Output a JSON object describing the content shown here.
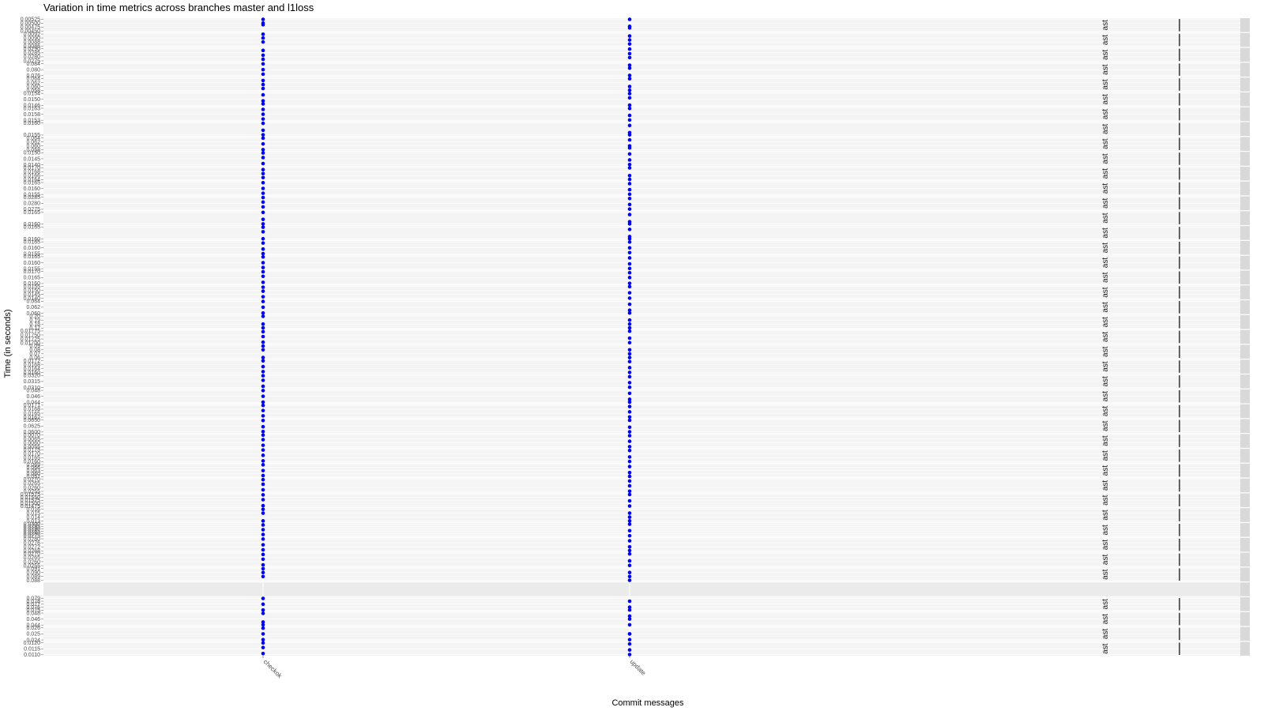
{
  "chart_data": {
    "type": "scatter",
    "title": "Variation in time metrics across branches master and l1loss",
    "xlabel": "Commit messages",
    "ylabel": "Time (in seconds)",
    "categories": [
      "checkok",
      "update"
    ],
    "point_color": "#0000ff",
    "facet_strip_text": "ast",
    "panels": [
      {
        "ticks": [
          "0.00525",
          "0.00500",
          "0.00475",
          "0.00450"
        ],
        "values": [
          [
            0.00525,
            0.005,
            0.0049
          ],
          [
            0.00525,
            0.0048,
            0.0047
          ]
        ]
      },
      {
        "ticks": [
          "0.0092",
          "0.0090",
          "0.0088",
          "0.0086"
        ],
        "values": [
          [
            0.0092,
            0.009,
            0.0088
          ],
          [
            0.0091,
            0.0089,
            0.0087
          ]
        ]
      },
      {
        "ticks": [
          "0.0290",
          "0.0285",
          "0.0280",
          "0.0275"
        ],
        "values": [
          [
            0.0288,
            0.0282,
            0.0277
          ],
          [
            0.029,
            0.0284,
            0.0279
          ]
        ]
      },
      {
        "ticks": [
          "0.084",
          "0.080",
          "0.076"
        ],
        "values": [
          [
            0.084,
            0.08,
            0.077
          ],
          [
            0.083,
            0.081,
            0.076
          ]
        ]
      },
      {
        "ticks": [
          "0.064",
          "0.062",
          "0.060",
          "0.058"
        ],
        "values": [
          [
            0.063,
            0.061,
            0.059
          ],
          [
            0.064,
            0.06,
            0.058
          ]
        ]
      },
      {
        "ticks": [
          "0.0154",
          "0.0150",
          "0.0146"
        ],
        "values": [
          [
            0.0153,
            0.0149,
            0.0147
          ],
          [
            0.0154,
            0.0151,
            0.0146
          ]
        ]
      },
      {
        "ticks": [
          "0.0163",
          "0.0158",
          "0.0153"
        ],
        "values": [
          [
            0.0162,
            0.0158,
            0.0154
          ],
          [
            0.0163,
            0.0157,
            0.0153
          ]
        ]
      },
      {
        "ticks": [
          "0.0160",
          "0.0155"
        ],
        "values": [
          [
            0.016,
            0.0157,
            0.0155
          ],
          [
            0.0159,
            0.0156,
            0.0155
          ]
        ]
      },
      {
        "ticks": [
          "0.064",
          "0.062",
          "0.060",
          "0.058"
        ],
        "values": [
          [
            0.064,
            0.061,
            0.058
          ],
          [
            0.063,
            0.06,
            0.059
          ]
        ]
      },
      {
        "ticks": [
          "0.0150",
          "0.0145",
          "0.0140"
        ],
        "values": [
          [
            0.015,
            0.0146,
            0.0141
          ],
          [
            0.0149,
            0.0144,
            0.014
          ]
        ]
      },
      {
        "ticks": [
          "0.0170",
          "0.0168",
          "0.0166",
          "0.0164"
        ],
        "values": [
          [
            0.0169,
            0.0167,
            0.0165
          ],
          [
            0.017,
            0.0166,
            0.0164
          ]
        ]
      },
      {
        "ticks": [
          "0.0165",
          "0.0160",
          "0.0155"
        ],
        "values": [
          [
            0.0165,
            0.016,
            0.0156
          ],
          [
            0.0164,
            0.0159,
            0.0155
          ]
        ]
      },
      {
        "ticks": [
          "0.0285",
          "0.0280",
          "0.0275"
        ],
        "values": [
          [
            0.0285,
            0.0281,
            0.0277
          ],
          [
            0.0284,
            0.0279,
            0.0275
          ]
        ]
      },
      {
        "ticks": [
          "0.0165",
          "0.0160"
        ],
        "values": [
          [
            0.0165,
            0.0162,
            0.016
          ],
          [
            0.0164,
            0.0161,
            0.016
          ]
        ]
      },
      {
        "ticks": [
          "0.0165",
          "0.0160"
        ],
        "values": [
          [
            0.0165,
            0.0163,
            0.016
          ],
          [
            0.0164,
            0.0161,
            0.016
          ]
        ]
      },
      {
        "ticks": [
          "0.0165",
          "0.0160",
          "0.0155"
        ],
        "values": [
          [
            0.0164,
            0.0159,
            0.0155
          ],
          [
            0.0165,
            0.016,
            0.0156
          ]
        ]
      },
      {
        "ticks": [
          "0.0165",
          "0.0160",
          "0.0155"
        ],
        "values": [
          [
            0.0165,
            0.016,
            0.0156
          ],
          [
            0.0164,
            0.0159,
            0.0155
          ]
        ]
      },
      {
        "ticks": [
          "0.0170",
          "0.0165",
          "0.0160"
        ],
        "values": [
          [
            0.017,
            0.0166,
            0.0161
          ],
          [
            0.0169,
            0.0165,
            0.016
          ]
        ]
      },
      {
        "ticks": [
          "0.0155",
          "0.0150",
          "0.0145",
          "0.0140"
        ],
        "values": [
          [
            0.0154,
            0.0149,
            0.0142
          ],
          [
            0.0155,
            0.0147,
            0.014
          ]
        ]
      },
      {
        "ticks": [
          "0.064",
          "0.062",
          "0.060"
        ],
        "values": [
          [
            0.064,
            0.062,
            0.06
          ],
          [
            0.063,
            0.061,
            0.06
          ]
        ]
      },
      {
        "ticks": [
          "0.20",
          "0.19",
          "0.18",
          "0.17"
        ],
        "values": [
          [
            0.2,
            0.18,
            0.17
          ],
          [
            0.19,
            0.18,
            0.17
          ]
        ]
      },
      {
        "ticks": [
          "0.01775",
          "0.01750",
          "0.01725",
          "0.01700"
        ],
        "values": [
          [
            0.0177,
            0.0174,
            0.01705
          ],
          [
            0.01775,
            0.0173,
            0.017
          ]
        ]
      },
      {
        "ticks": [
          "0.09",
          "0.08",
          "0.07",
          "0.06"
        ],
        "values": [
          [
            0.09,
            0.08,
            0.06
          ],
          [
            0.08,
            0.07,
            0.06
          ]
        ]
      },
      {
        "ticks": [
          "0.0172",
          "0.0168",
          "0.0164",
          "0.0160"
        ],
        "values": [
          [
            0.0172,
            0.0166,
            0.0161
          ],
          [
            0.0171,
            0.0165,
            0.016
          ]
        ]
      },
      {
        "ticks": [
          "0.0320",
          "0.0315",
          "0.0310"
        ],
        "values": [
          [
            0.032,
            0.0316,
            0.0311
          ],
          [
            0.0319,
            0.0314,
            0.031
          ]
        ]
      },
      {
        "ticks": [
          "0.048",
          "0.046",
          "0.044"
        ],
        "values": [
          [
            0.048,
            0.046,
            0.044
          ],
          [
            0.047,
            0.045,
            0.044
          ]
        ]
      },
      {
        "ticks": [
          "0.0171",
          "0.0168",
          "0.0165",
          "0.0162"
        ],
        "values": [
          [
            0.0171,
            0.0167,
            0.0163
          ],
          [
            0.017,
            0.0166,
            0.0162
          ]
        ]
      },
      {
        "ticks": [
          "0.0650",
          "0.0625",
          "0.0600"
        ],
        "values": [
          [
            0.0648,
            0.0622,
            0.0602
          ],
          [
            0.065,
            0.062,
            0.06
          ]
        ]
      },
      {
        "ticks": [
          "0.0070",
          "0.0065",
          "0.0060",
          "0.0055"
        ],
        "values": [
          [
            0.007,
            0.0064,
            0.0057
          ],
          [
            0.0069,
            0.0062,
            0.0055
          ]
        ]
      },
      {
        "ticks": [
          "0.0175",
          "0.0170",
          "0.0165",
          "0.0160"
        ],
        "values": [
          [
            0.0175,
            0.0168,
            0.0161
          ],
          [
            0.0174,
            0.0166,
            0.016
          ]
        ]
      },
      {
        "ticks": [
          "0.069",
          "0.066",
          "0.063",
          "0.060",
          "0.057"
        ],
        "values": [
          [
            0.069,
            0.063,
            0.058
          ],
          [
            0.067,
            0.061,
            0.057
          ]
        ]
      },
      {
        "ticks": [
          "0.0270",
          "0.0265",
          "0.0260",
          "0.0255"
        ],
        "values": [
          [
            0.027,
            0.0264,
            0.0257
          ],
          [
            0.0268,
            0.0262,
            0.0255
          ]
        ]
      },
      {
        "ticks": [
          "0.01575",
          "0.01550",
          "0.01525",
          "0.01500",
          "0.01475"
        ],
        "values": [
          [
            0.0157,
            0.0153,
            0.0148
          ],
          [
            0.01575,
            0.0152,
            0.01475
          ]
        ]
      },
      {
        "ticks": [
          "0.016",
          "0.015",
          "0.014",
          "0.013"
        ],
        "values": [
          [
            0.016,
            0.015,
            0.013
          ],
          [
            0.015,
            0.014,
            0.013
          ]
        ]
      },
      {
        "ticks": [
          "0.0300",
          "0.0295",
          "0.0290",
          "0.0285",
          "0.0280",
          "0.0275"
        ],
        "values": [
          [
            0.0298,
            0.0288,
            0.0278
          ],
          [
            0.03,
            0.0286,
            0.0275
          ]
        ]
      },
      {
        "ticks": [
          "0.0280",
          "0.0276",
          "0.0272",
          "0.0268"
        ],
        "values": [
          [
            0.028,
            0.0274,
            0.0269
          ],
          [
            0.0278,
            0.0272,
            0.0268
          ]
        ]
      },
      {
        "ticks": [
          "0.0270",
          "0.0265",
          "0.0260",
          "0.0255"
        ],
        "values": [
          [
            0.0269,
            0.0263,
            0.0256
          ],
          [
            0.027,
            0.0261,
            0.0255
          ]
        ]
      },
      {
        "ticks": [
          "0.091",
          "0.090",
          "0.089",
          "0.088"
        ],
        "values": [
          [
            0.091,
            0.09,
            0.089
          ],
          [
            0.09,
            0.089,
            0.088
          ]
        ]
      },
      {
        "ticks": [],
        "values": [
          [],
          []
        ],
        "empty": true
      },
      {
        "ticks": [
          "0.079",
          "0.078",
          "0.077",
          "0.076",
          "0.075"
        ],
        "values": [
          [
            0.079,
            0.077,
            0.075
          ],
          [
            0.078,
            0.076,
            0.075
          ]
        ]
      },
      {
        "ticks": [
          "0.048",
          "0.046",
          "0.044"
        ],
        "values": [
          [
            0.048,
            0.045,
            0.044
          ],
          [
            0.047,
            0.046,
            0.044
          ]
        ]
      },
      {
        "ticks": [
          "0.026",
          "0.025",
          "0.024"
        ],
        "values": [
          [
            0.026,
            0.025,
            0.024
          ],
          [
            0.025,
            0.025,
            0.024
          ]
        ]
      },
      {
        "ticks": [
          "0.0120",
          "0.0115",
          "0.0110"
        ],
        "values": [
          [
            0.012,
            0.0116,
            0.0111
          ],
          [
            0.0119,
            0.0114,
            0.011
          ]
        ]
      }
    ]
  }
}
